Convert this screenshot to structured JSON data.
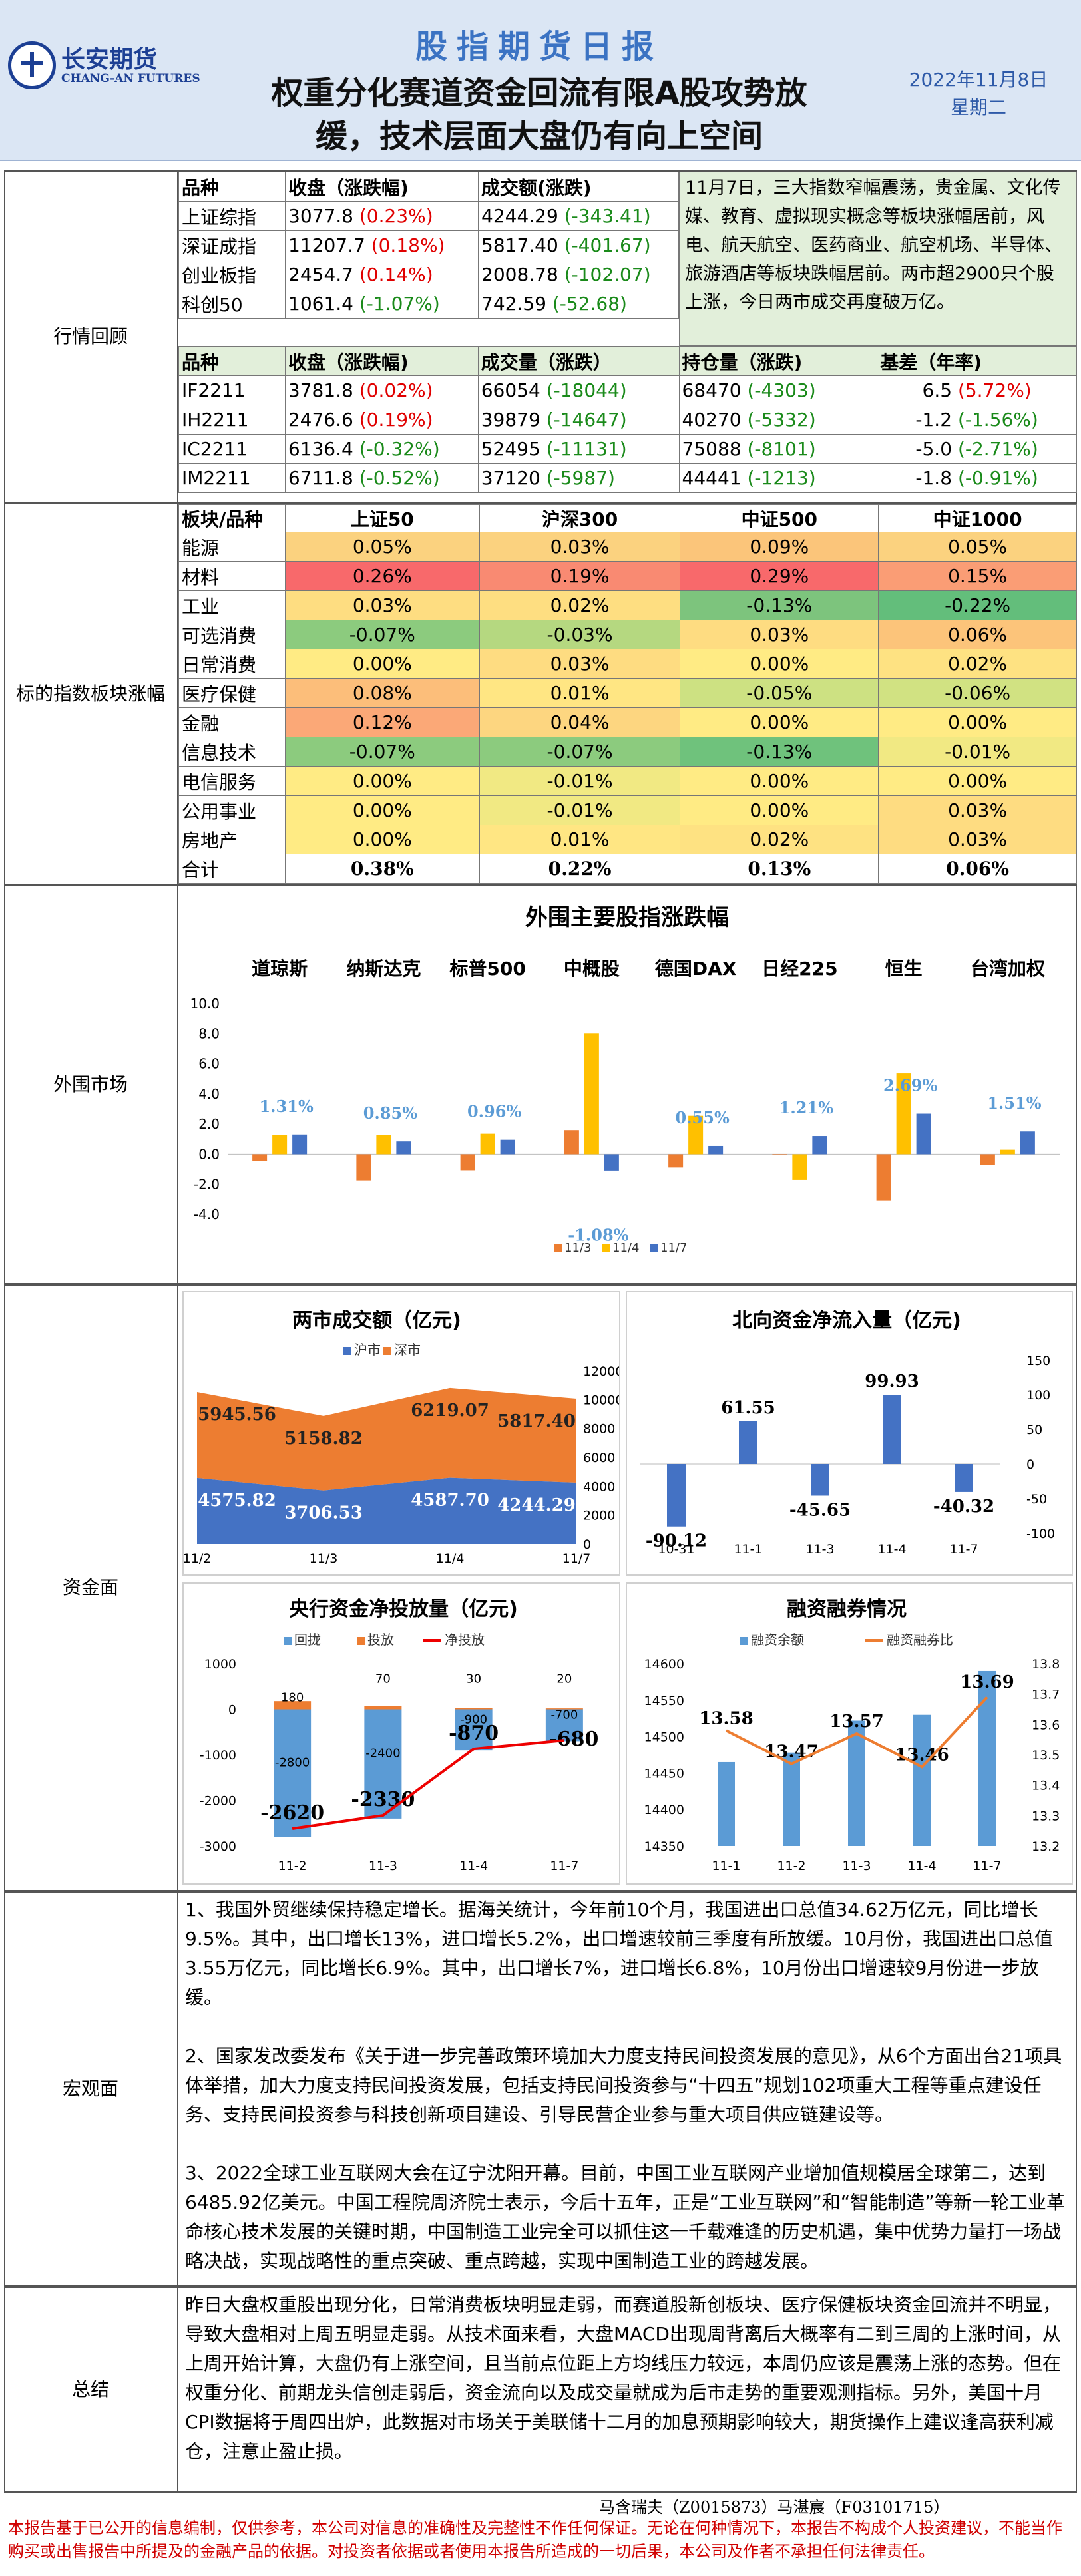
{
  "header": {
    "logo_cn": "长安期货",
    "logo_en": "CHANG-AN FUTURES",
    "title": "股指期货日报",
    "headline1": "权重分化赛道资金回流有限A股攻势放",
    "headline2": "缓，技术层面大盘仍有向上空间",
    "date": "2022年11月8日",
    "weekday": "星期二"
  },
  "market_review": {
    "label": "行情回顾",
    "index_headers": [
      "品种",
      "收盘（涨跌幅)",
      "成交额(涨跌)"
    ],
    "indices": [
      {
        "name": "上证综指",
        "close": "3077.8",
        "pct": "(0.23%)",
        "pct_dir": "up",
        "amount": "4244.29",
        "amount_chg": "(-343.41)",
        "amount_dir": "dn"
      },
      {
        "name": "深证成指",
        "close": "11207.7",
        "pct": "(0.18%)",
        "pct_dir": "up",
        "amount": "5817.40",
        "amount_chg": "(-401.67)",
        "amount_dir": "dn"
      },
      {
        "name": "创业板指",
        "close": "2454.7",
        "pct": "(0.14%)",
        "pct_dir": "up",
        "amount": "2008.78",
        "amount_chg": "(-102.07)",
        "amount_dir": "dn"
      },
      {
        "name": "科创50",
        "close": "1061.4",
        "pct": "(-1.07%)",
        "pct_dir": "dn",
        "amount": "742.59",
        "amount_chg": "(-52.68)",
        "amount_dir": "dn"
      }
    ],
    "note": "11月7日，三大指数窄幅震荡，贵金属、文化传媒、教育、虚拟现实概念等板块涨幅居前，风电、航天航空、医药商业、航空机场、半导体、旅游酒店等板块跌幅居前。两市超2900只个股上涨，今日两市成交再度破万亿。",
    "futures_headers": [
      "品种",
      "收盘（涨跌幅)",
      "成交量（涨跌）",
      "持仓量（涨跌)",
      "基差（年率)"
    ],
    "futures": [
      {
        "name": "IF2211",
        "close": "3781.8",
        "pct": "(0.02%)",
        "pct_dir": "up",
        "vol": "66054",
        "vol_chg": "(-18044)",
        "oi": "68470",
        "oi_chg": "(-4303)",
        "basis": "6.5",
        "basis_pct": "(5.72%)",
        "basis_dir": "up"
      },
      {
        "name": "IH2211",
        "close": "2476.6",
        "pct": "(0.19%)",
        "pct_dir": "up",
        "vol": "39879",
        "vol_chg": "(-14647)",
        "oi": "40270",
        "oi_chg": "(-5332)",
        "basis": "-1.2",
        "basis_pct": "(-1.56%)",
        "basis_dir": "dn"
      },
      {
        "name": "IC2211",
        "close": "6136.4",
        "pct": "(-0.32%)",
        "pct_dir": "dn",
        "vol": "52495",
        "vol_chg": "(-11131)",
        "oi": "75088",
        "oi_chg": "(-8101)",
        "basis": "-5.0",
        "basis_pct": "(-2.71%)",
        "basis_dir": "dn"
      },
      {
        "name": "IM2211",
        "close": "6711.8",
        "pct": "(-0.52%)",
        "pct_dir": "dn",
        "vol": "37120",
        "vol_chg": "(-5987)",
        "oi": "44441",
        "oi_chg": "(-1213)",
        "basis": "-1.8",
        "basis_pct": "(-0.91%)",
        "basis_dir": "dn"
      }
    ]
  },
  "sector": {
    "label": "标的指数板块涨幅",
    "headers": [
      "板块/品种",
      "上证50",
      "沪深300",
      "中证500",
      "中证1000"
    ],
    "rows": [
      {
        "name": "能源",
        "v": [
          "0.05%",
          "0.03%",
          "0.09%",
          "0.05%"
        ],
        "c": [
          "#fbd27f",
          "#fbd27f",
          "#fbc57a",
          "#fbd27f"
        ]
      },
      {
        "name": "材料",
        "v": [
          "0.26%",
          "0.19%",
          "0.29%",
          "0.15%"
        ],
        "c": [
          "#f8696b",
          "#f98a72",
          "#f8696b",
          "#fa9d75"
        ]
      },
      {
        "name": "工业",
        "v": [
          "0.03%",
          "0.02%",
          "-0.13%",
          "-0.22%"
        ],
        "c": [
          "#fedd81",
          "#fede81",
          "#7dc47d",
          "#63be7b"
        ]
      },
      {
        "name": "可选消费",
        "v": [
          "-0.07%",
          "-0.03%",
          "0.03%",
          "0.06%"
        ],
        "c": [
          "#8ccb7e",
          "#b5d880",
          "#fedc81",
          "#fcc47a"
        ]
      },
      {
        "name": "日常消费",
        "v": [
          "0.00%",
          "0.03%",
          "0.00%",
          "0.02%"
        ],
        "c": [
          "#ffeb84",
          "#fedc81",
          "#ffeb84",
          "#fee282"
        ]
      },
      {
        "name": "医疗保健",
        "v": [
          "0.08%",
          "0.01%",
          "-0.05%",
          "-0.06%"
        ],
        "c": [
          "#fcbe7a",
          "#ffe683",
          "#cde182",
          "#d1e282"
        ]
      },
      {
        "name": "金融",
        "v": [
          "0.12%",
          "0.04%",
          "0.00%",
          "0.00%"
        ],
        "c": [
          "#fba877",
          "#fdd680",
          "#ffeb84",
          "#ffeb84"
        ]
      },
      {
        "name": "信息技术",
        "v": [
          "-0.07%",
          "-0.07%",
          "-0.13%",
          "-0.01%"
        ],
        "c": [
          "#8ccb7e",
          "#8ccb7e",
          "#6fc27c",
          "#f1e983"
        ]
      },
      {
        "name": "电信服务",
        "v": [
          "0.00%",
          "-0.01%",
          "0.00%",
          "0.00%"
        ],
        "c": [
          "#ffeb84",
          "#f1e983",
          "#ffeb84",
          "#ffeb84"
        ]
      },
      {
        "name": "公用事业",
        "v": [
          "0.00%",
          "-0.01%",
          "0.00%",
          "0.03%"
        ],
        "c": [
          "#ffeb84",
          "#f1e983",
          "#ffeb84",
          "#fedc81"
        ]
      },
      {
        "name": "房地产",
        "v": [
          "0.00%",
          "0.01%",
          "0.02%",
          "0.03%"
        ],
        "c": [
          "#ffeb84",
          "#ffe683",
          "#fee282",
          "#fedc81"
        ]
      }
    ],
    "total_label": "合计",
    "totals": [
      "0.38%",
      "0.22%",
      "0.13%",
      "0.06%"
    ]
  },
  "foreign": {
    "label": "外围市场",
    "chart_data": {
      "type": "bar",
      "title": "外围主要股指涨跌幅",
      "categories": [
        "道琼斯",
        "纳斯达克",
        "标普500",
        "中概股",
        "德国DAX",
        "日经225",
        "恒生",
        "台湾加权"
      ],
      "series": [
        {
          "name": "11/3",
          "color": "#ed7d31",
          "values": [
            -0.46,
            -1.73,
            -1.06,
            1.6,
            -0.88,
            0.0,
            -3.1,
            -0.72
          ]
        },
        {
          "name": "11/4",
          "color": "#ffc000",
          "values": [
            1.26,
            1.28,
            1.36,
            8.0,
            2.55,
            -1.7,
            5.36,
            0.3
          ]
        },
        {
          "name": "11/7",
          "color": "#4472c4",
          "values": [
            1.31,
            0.85,
            0.96,
            -1.08,
            0.55,
            1.21,
            2.69,
            1.51
          ]
        }
      ],
      "labels_11_7": [
        "1.31%",
        "0.85%",
        "0.96%",
        "-1.08%",
        "0.55%",
        "1.21%",
        "2.69%",
        "1.51%"
      ],
      "yticks": [
        "10.0",
        "8.0",
        "6.0",
        "4.0",
        "2.0",
        "0.0",
        "-2.0",
        "-4.0"
      ],
      "ylim": [
        -4,
        10
      ]
    }
  },
  "capital": {
    "label": "资金面",
    "turnover": {
      "type": "area",
      "title": "两市成交额（亿元)",
      "legend": [
        "沪市",
        "深市"
      ],
      "categories": [
        "11/2",
        "11/3",
        "11/4",
        "11/7"
      ],
      "sh": [
        4575.82,
        3706.53,
        4587.7,
        4244.29
      ],
      "sz": [
        5945.56,
        5158.82,
        6219.07,
        5817.4
      ],
      "sh_labels": [
        "4575.82",
        "3706.53",
        "4587.70",
        "4244.29"
      ],
      "sz_labels": [
        "5945.56",
        "5158.82",
        "6219.07",
        "5817.40"
      ],
      "yticks": [
        "12000",
        "10000",
        "8000",
        "6000",
        "4000",
        "2000",
        "0"
      ],
      "colors": [
        "#4472c4",
        "#ed7d31"
      ]
    },
    "northbound": {
      "type": "bar",
      "title": "北向资金净流入量（亿元)",
      "categories": [
        "10-31",
        "11-1",
        "11-3",
        "11-4",
        "11-7"
      ],
      "values": [
        -90.12,
        61.55,
        -45.65,
        99.93,
        -40.32
      ],
      "labels": [
        "-90.12",
        "61.55",
        "-45.65",
        "99.93",
        "-40.32"
      ],
      "yticks": [
        "150",
        "100",
        "50",
        "0",
        "-50",
        "-100"
      ]
    },
    "pboc": {
      "type": "bar",
      "title": "央行资金净投放量（亿元)",
      "legend": [
        "回拢",
        "投放",
        "净投放"
      ],
      "categories": [
        "11-2",
        "11-3",
        "11-4",
        "11-7"
      ],
      "withdraw": [
        -2800,
        -2400,
        -900,
        -700
      ],
      "inject": [
        180,
        70,
        30,
        20
      ],
      "net": [
        -2620,
        -2330,
        -870,
        -680
      ],
      "withdraw_labels": [
        "-2800",
        "-2400",
        "-900",
        "-700"
      ],
      "inject_labels": [
        "180",
        "70",
        "30",
        "20"
      ],
      "net_labels": [
        "-2620",
        "-2330",
        "-870",
        "-680"
      ],
      "yticks": [
        "1000",
        "0",
        "-1000",
        "-2000",
        "-3000"
      ]
    },
    "margin": {
      "type": "bar",
      "title": "融资融券情况",
      "legend": [
        "融资余额",
        "融资融券比"
      ],
      "categories": [
        "11-1",
        "11-2",
        "11-3",
        "11-4",
        "11-7"
      ],
      "balance": [
        14465,
        14478,
        14522,
        14530,
        14590
      ],
      "ratio": [
        13.58,
        13.47,
        13.57,
        13.46,
        13.69
      ],
      "ratio_labels": [
        "13.58",
        "13.47",
        "13.57",
        "13.46",
        "13.69"
      ],
      "yticks_left": [
        "14600",
        "14550",
        "14500",
        "14450",
        "14400",
        "14350"
      ],
      "yticks_right": [
        "13.8",
        "13.7",
        "13.6",
        "13.5",
        "13.4",
        "13.3",
        "13.2"
      ]
    }
  },
  "macro": {
    "label": "宏观面",
    "paragraphs": [
      "1、我国外贸继续保持稳定增长。据海关统计，今年前10个月，我国进出口总值34.62万亿元，同比增长9.5%。其中，出口增长13%，进口增长5.2%，出口增速较前三季度有所放缓。10月份，我国进出口总值3.55万亿元，同比增长6.9%。其中，出口增长7%，进口增长6.8%，10月份出口增速较9月份进一步放缓。",
      "2、国家发改委发布《关于进一步完善政策环境加大力度支持民间投资发展的意见》，从6个方面出台21项具体举措，加大力度支持民间投资发展，包括支持民间投资参与“十四五”规划102项重大工程等重点建设任务、支持民间投资参与科技创新项目建设、引导民营企业参与重大项目供应链建设等。",
      "3、2022全球工业互联网大会在辽宁沈阳开幕。目前，中国工业互联网产业增加值规模居全球第二，达到6485.92亿美元。中国工程院周济院士表示，今后十五年，正是“工业互联网”和“智能制造”等新一轮工业革命核心技术发展的关键时期，中国制造工业完全可以抓住这一千载难逢的历史机遇，集中优势力量打一场战略决战，实现战略性的重点突破、重点跨越，实现中国制造工业的跨越发展。"
    ]
  },
  "summary": {
    "label": "总结",
    "text": "昨日大盘权重股出现分化，日常消费板块明显走弱，而赛道股新创板块、医疗保健板块资金回流并不明显，导致大盘相对上周五明显走弱。从技术面来看，大盘MACD出现周背离后大概率有二到三周的上涨时间，从上周开始计算，大盘仍有上涨空间，且当前点位距上方均线压力较远，本周仍应该是震荡上涨的态势。但在权重分化、前期龙头信创走弱后，资金流向以及成交量就成为后市走势的重要观测指标。另外，美国十月CPI数据将于周四出炉，此数据对市场关于美联储十二月的加息预期影响较大，期货操作上建议逢高获利减仓，注意止盈止损。"
  },
  "footer": {
    "authors": "马含瑞夫（Z0015873）马湛宸（F03101715）",
    "disclaimer": "本报告基于已公开的信息编制，仅供参考，本公司对信息的准确性及完整性不作任何保证。无论在何种情况下，本报告不构成个人投资建议，不能当作购买或出售报告中所提及的金融产品的依据。对投资者依据或者使用本报告所造成的一切后果，本公司及作者不承担任何法律责任。"
  }
}
